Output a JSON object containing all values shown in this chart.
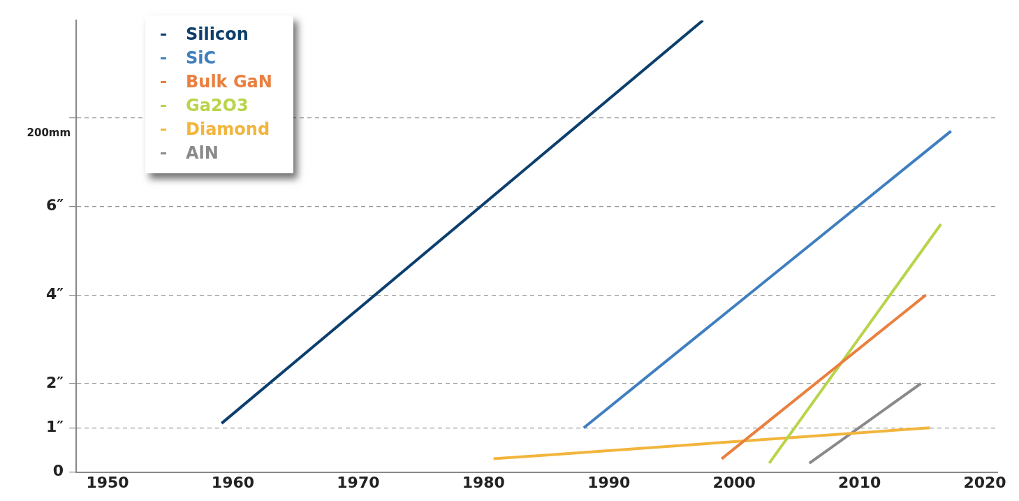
{
  "chart_data": {
    "type": "line",
    "marker": "none",
    "line_style": "solid",
    "grid": "y",
    "legend": "top left",
    "xlim": [
      1947.5,
      2021
    ],
    "xticks": [
      1950,
      1960,
      1970,
      1980,
      1990,
      2000,
      2010,
      2020
    ],
    "ylim": [
      0,
      10.2
    ],
    "yticks": [
      0,
      {
        "value": 1,
        "label": "1″"
      },
      {
        "value": 2,
        "label": "2″"
      },
      {
        "value": 4,
        "label": "4″"
      },
      {
        "value": 6,
        "label": "6″"
      },
      {
        "value": 8,
        "label": null
      }
    ],
    "annotations": [
      "200mm"
    ],
    "series": [
      {
        "name": "Silicon",
        "color": "#0d3f6e",
        "x": [
          1959.1,
          1997.5
        ],
        "values": [
          1.1,
          10.2
        ]
      },
      {
        "name": "SiC",
        "color": "#3f7fbf",
        "x": [
          1988,
          2017.3
        ],
        "values": [
          1.0,
          7.7
        ]
      },
      {
        "name": "Bulk GaN",
        "color": "#e9803f",
        "x": [
          1999,
          2015.3
        ],
        "values": [
          0.3,
          4.0
        ]
      },
      {
        "name": "Ga2O3",
        "color": "#b8d44a",
        "x": [
          2002.8,
          2016.5
        ],
        "values": [
          0.2,
          5.6
        ]
      },
      {
        "name": "Diamond",
        "color": "#f2b53c",
        "x": [
          1980.8,
          2015.6
        ],
        "values": [
          0.3,
          1.0
        ]
      },
      {
        "name": "AlN",
        "color": "#8a8a8a",
        "x": [
          2006,
          2014.9
        ],
        "values": [
          0.2,
          2.0
        ]
      }
    ]
  }
}
